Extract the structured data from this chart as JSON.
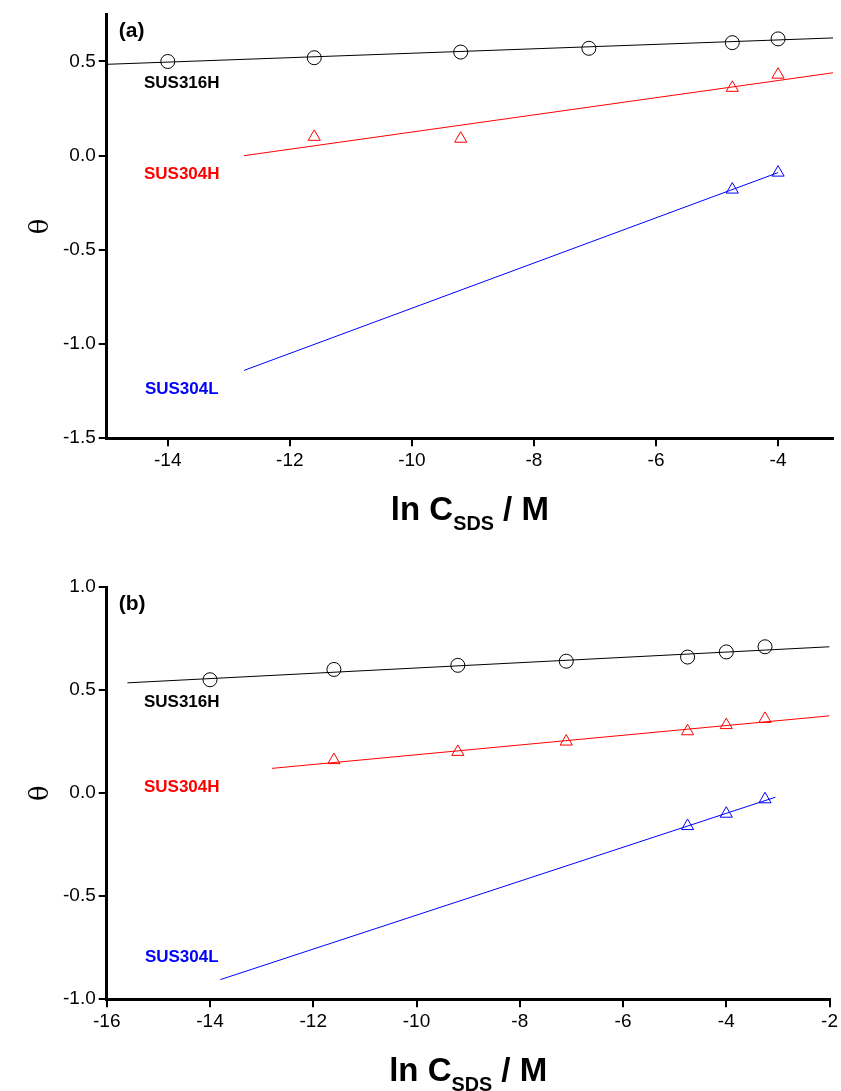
{
  "chart_data": [
    {
      "type": "scatter",
      "xlabel": "ln C$_{SDS}$ / M",
      "ylabel": "θ",
      "xlim": [
        -15,
        -3.1
      ],
      "xticks": [
        -14,
        -12,
        -10,
        -8,
        -6,
        -4
      ],
      "ylim": [
        -1.5,
        0.75
      ],
      "yticks": [
        -1.5,
        {
          "value": -1,
          "label": "-1.0"
        },
        -0.5,
        {
          "value": 0,
          "label": "0.0"
        },
        0.5
      ],
      "grid": false,
      "legend": false,
      "annotations": [
        "(a)"
      ],
      "series": [
        {
          "type": "scatter",
          "name": "SUS316H",
          "color": "#000000",
          "marker": "circle",
          "x": [
            -14,
            -11.6,
            -9.2,
            -7.1,
            -4.75,
            -4
          ],
          "values": [
            0.5,
            0.52,
            0.55,
            0.57,
            0.6,
            0.62
          ]
        },
        {
          "type": "line",
          "color": "#000000",
          "marker": "none",
          "x": [
            -15,
            -3.1
          ],
          "values": [
            0.485,
            0.625
          ]
        },
        {
          "type": "scatter",
          "name": "SUS304H",
          "color": "#ff0000",
          "marker": "triangle",
          "x": [
            -11.6,
            -9.2,
            -4.75,
            -4
          ],
          "values": [
            0.1,
            0.09,
            0.36,
            0.43
          ]
        },
        {
          "type": "line",
          "color": "#ff0000",
          "marker": "none",
          "x": [
            -12.75,
            -3.1
          ],
          "values": [
            0,
            0.44
          ]
        },
        {
          "type": "scatter",
          "name": "SUS304L",
          "color": "#0000ff",
          "marker": "triangle",
          "x": [
            -4.75,
            -4
          ],
          "values": [
            -0.18,
            -0.09
          ]
        },
        {
          "type": "line",
          "color": "#0000ff",
          "marker": "none",
          "x": [
            -12.75,
            -4
          ],
          "values": [
            -1.14,
            -0.09
          ]
        }
      ]
    },
    {
      "type": "scatter",
      "xlabel": "ln C$_{SDS}$ / M",
      "ylabel": "θ",
      "xlim": [
        -16,
        -2
      ],
      "xticks": [
        -16,
        -14,
        -12,
        -10,
        -8,
        -6,
        -4,
        -2
      ],
      "ylim": [
        -1.0,
        1.0
      ],
      "yticks": [
        {
          "value": -1,
          "label": "-1.0"
        },
        -0.5,
        {
          "value": 0,
          "label": "0.0"
        },
        0.5,
        {
          "value": 1,
          "label": "1.0"
        }
      ],
      "grid": false,
      "legend": false,
      "annotations": [
        "(b)"
      ],
      "series": [
        {
          "type": "scatter",
          "name": "SUS316H",
          "color": "#000000",
          "marker": "circle",
          "x": [
            -14,
            -11.6,
            -9.2,
            -7.1,
            -4.75,
            -4,
            -3.25
          ],
          "values": [
            0.55,
            0.6,
            0.62,
            0.64,
            0.66,
            0.685,
            0.71
          ]
        },
        {
          "type": "line",
          "color": "#000000",
          "marker": "none",
          "x": [
            -15.6,
            -2
          ],
          "values": [
            0.535,
            0.71
          ]
        },
        {
          "type": "scatter",
          "name": "SUS304H",
          "color": "#ff0000",
          "marker": "triangle",
          "x": [
            -11.6,
            -9.2,
            -7.1,
            -4.75,
            -4,
            -3.25
          ],
          "values": [
            0.16,
            0.2,
            0.25,
            0.3,
            0.33,
            0.36
          ]
        },
        {
          "type": "line",
          "color": "#ff0000",
          "marker": "none",
          "x": [
            -12.8,
            -2
          ],
          "values": [
            0.12,
            0.375
          ]
        },
        {
          "type": "scatter",
          "name": "SUS304L",
          "color": "#0000ff",
          "marker": "triangle",
          "x": [
            -4.75,
            -4,
            -3.25
          ],
          "values": [
            -0.16,
            -0.1,
            -0.03
          ]
        },
        {
          "type": "line",
          "color": "#0000ff",
          "marker": "none",
          "x": [
            -13.8,
            -3.05
          ],
          "values": [
            -0.905,
            -0.02
          ]
        }
      ]
    }
  ]
}
